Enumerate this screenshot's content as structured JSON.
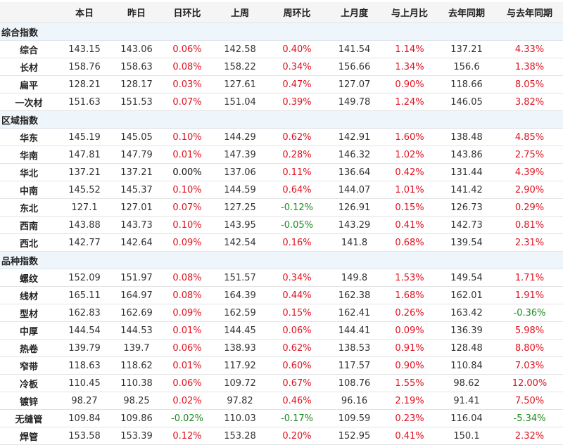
{
  "colors": {
    "up": "#e0121f",
    "down": "#1e8a1e",
    "flat": "#111111"
  },
  "headers": [
    "",
    "本日",
    "昨日",
    "日环比",
    "上周",
    "周环比",
    "上月度",
    "与上月比",
    "去年同期",
    "与去年同期"
  ],
  "sections": [
    {
      "title": "综合指数",
      "rows": [
        [
          "综合",
          "143.15",
          "143.06",
          "0.06%",
          "142.58",
          "0.40%",
          "141.54",
          "1.14%",
          "137.21",
          "4.33%"
        ],
        [
          "长材",
          "158.76",
          "158.63",
          "0.08%",
          "158.22",
          "0.34%",
          "156.66",
          "1.34%",
          "156.6",
          "1.38%"
        ],
        [
          "扁平",
          "128.21",
          "128.17",
          "0.03%",
          "127.61",
          "0.47%",
          "127.07",
          "0.90%",
          "118.66",
          "8.05%"
        ],
        [
          "一次材",
          "151.63",
          "151.53",
          "0.07%",
          "151.04",
          "0.39%",
          "149.78",
          "1.24%",
          "146.05",
          "3.82%"
        ]
      ]
    },
    {
      "title": "区域指数",
      "rows": [
        [
          "华东",
          "145.19",
          "145.05",
          "0.10%",
          "144.29",
          "0.62%",
          "142.91",
          "1.60%",
          "138.48",
          "4.85%"
        ],
        [
          "华南",
          "147.81",
          "147.79",
          "0.01%",
          "147.39",
          "0.28%",
          "146.32",
          "1.02%",
          "143.86",
          "2.75%"
        ],
        [
          "华北",
          "137.21",
          "137.21",
          "0.00%",
          "137.06",
          "0.11%",
          "136.64",
          "0.42%",
          "131.44",
          "4.39%"
        ],
        [
          "中南",
          "145.52",
          "145.37",
          "0.10%",
          "144.59",
          "0.64%",
          "144.07",
          "1.01%",
          "141.42",
          "2.90%"
        ],
        [
          "东北",
          "127.1",
          "127.01",
          "0.07%",
          "127.25",
          "-0.12%",
          "126.91",
          "0.15%",
          "126.73",
          "0.29%"
        ],
        [
          "西南",
          "143.88",
          "143.73",
          "0.10%",
          "143.95",
          "-0.05%",
          "143.29",
          "0.41%",
          "142.73",
          "0.81%"
        ],
        [
          "西北",
          "142.77",
          "142.64",
          "0.09%",
          "142.54",
          "0.16%",
          "141.8",
          "0.68%",
          "139.54",
          "2.31%"
        ]
      ]
    },
    {
      "title": "品种指数",
      "rows": [
        [
          "螺纹",
          "152.09",
          "151.97",
          "0.08%",
          "151.57",
          "0.34%",
          "149.8",
          "1.53%",
          "149.54",
          "1.71%"
        ],
        [
          "线材",
          "165.11",
          "164.97",
          "0.08%",
          "164.39",
          "0.44%",
          "162.38",
          "1.68%",
          "162.01",
          "1.91%"
        ],
        [
          "型材",
          "162.83",
          "162.69",
          "0.09%",
          "162.59",
          "0.15%",
          "162.41",
          "0.26%",
          "163.42",
          "-0.36%"
        ],
        [
          "中厚",
          "144.54",
          "144.53",
          "0.01%",
          "144.45",
          "0.06%",
          "144.41",
          "0.09%",
          "136.39",
          "5.98%"
        ],
        [
          "热卷",
          "139.79",
          "139.7",
          "0.06%",
          "138.93",
          "0.62%",
          "138.53",
          "0.91%",
          "128.48",
          "8.80%"
        ],
        [
          "窄带",
          "118.63",
          "118.62",
          "0.01%",
          "117.92",
          "0.60%",
          "117.57",
          "0.90%",
          "110.84",
          "7.03%"
        ],
        [
          "冷板",
          "110.45",
          "110.38",
          "0.06%",
          "109.72",
          "0.67%",
          "108.76",
          "1.55%",
          "98.62",
          "12.00%"
        ],
        [
          "镀锌",
          "98.27",
          "98.25",
          "0.02%",
          "97.82",
          "0.46%",
          "96.16",
          "2.19%",
          "91.41",
          "7.50%"
        ],
        [
          "无缝管",
          "109.84",
          "109.86",
          "-0.02%",
          "110.03",
          "-0.17%",
          "109.59",
          "0.23%",
          "116.04",
          "-5.34%"
        ],
        [
          "焊管",
          "153.58",
          "153.39",
          "0.12%",
          "153.28",
          "0.20%",
          "152.95",
          "0.41%",
          "150.1",
          "2.32%"
        ]
      ]
    }
  ]
}
